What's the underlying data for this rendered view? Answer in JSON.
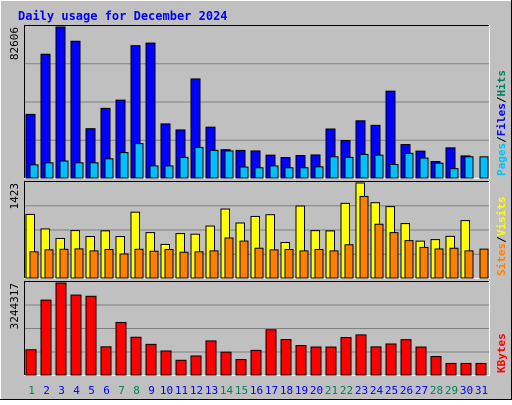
{
  "title": "Daily usage for December 2024",
  "colors": {
    "background": "#c0c0c0",
    "title": "#0000ff",
    "hits": "#00805c",
    "files": "#0000ff",
    "pages": "#00c0ff",
    "visits": "#ffff00",
    "sites": "#ff8000",
    "kbytes": "#ff0000",
    "weekend_day": "#00805c",
    "weekday": "#0000ff"
  },
  "chart_data": [
    {
      "type": "bar",
      "name": "hits-files-pages",
      "max_label": "82606",
      "ymax": 82606,
      "legend": [
        "Pages",
        "/",
        "Files",
        "/",
        "Hits"
      ],
      "categories": [
        "1",
        "2",
        "3",
        "4",
        "5",
        "6",
        "7",
        "8",
        "9",
        "10",
        "11",
        "12",
        "13",
        "14",
        "15",
        "16",
        "17",
        "18",
        "19",
        "20",
        "21",
        "22",
        "23",
        "24",
        "25",
        "26",
        "27",
        "28",
        "29",
        "30",
        "31"
      ],
      "series": [
        {
          "name": "Files",
          "values": [
            34800,
            67700,
            82600,
            74800,
            27000,
            38100,
            42600,
            72400,
            73800,
            29600,
            26300,
            54200,
            27800,
            15500,
            15100,
            14800,
            12500,
            11200,
            12300,
            12600,
            26800,
            20500,
            31300,
            28800,
            47500,
            18300,
            14700,
            9000,
            16500,
            12100,
            0
          ]
        },
        {
          "name": "Pages",
          "values": [
            7200,
            8300,
            9300,
            8300,
            8300,
            10500,
            13900,
            18800,
            6600,
            6600,
            11300,
            16700,
            15100,
            14800,
            6000,
            5600,
            6600,
            5600,
            5600,
            6100,
            11600,
            11300,
            12900,
            12500,
            7400,
            13500,
            10900,
            8100,
            5100,
            11600,
            11600
          ]
        }
      ]
    },
    {
      "type": "bar",
      "name": "visits-sites",
      "max_label": "1423",
      "ymax": 1423,
      "legend": [
        "Sites",
        "/",
        "Visits"
      ],
      "categories": [
        "1",
        "2",
        "3",
        "4",
        "5",
        "6",
        "7",
        "8",
        "9",
        "10",
        "11",
        "12",
        "13",
        "14",
        "15",
        "16",
        "17",
        "18",
        "19",
        "20",
        "21",
        "22",
        "23",
        "24",
        "25",
        "26",
        "27",
        "28",
        "29",
        "30",
        "31"
      ],
      "series": [
        {
          "name": "Visits",
          "values": [
            952,
            735,
            592,
            710,
            621,
            706,
            621,
            986,
            680,
            503,
            665,
            656,
            778,
            1033,
            824,
            922,
            948,
            532,
            1078,
            709,
            705,
            1118,
            1423,
            1128,
            1069,
            815,
            552,
            575,
            624,
            860,
            0
          ]
        },
        {
          "name": "Sites",
          "values": [
            392,
            422,
            430,
            436,
            406,
            427,
            360,
            430,
            401,
            427,
            386,
            392,
            406,
            599,
            553,
            446,
            422,
            427,
            406,
            427,
            406,
            498,
            1222,
            805,
            679,
            560,
            458,
            435,
            446,
            406,
            432
          ]
        }
      ]
    },
    {
      "type": "bar",
      "name": "kbytes",
      "max_label": "3244317",
      "ymax": 3244317,
      "legend": [
        "KBytes"
      ],
      "categories": [
        "1",
        "2",
        "3",
        "4",
        "5",
        "6",
        "7",
        "8",
        "9",
        "10",
        "11",
        "12",
        "13",
        "14",
        "15",
        "16",
        "17",
        "18",
        "19",
        "20",
        "21",
        "22",
        "23",
        "24",
        "25",
        "26",
        "27",
        "28",
        "29",
        "30",
        "31"
      ],
      "series": [
        {
          "name": "KBytes",
          "values": [
            891000,
            2641000,
            3244000,
            2819000,
            2776000,
            994000,
            1853000,
            1332000,
            1081000,
            847000,
            519000,
            671000,
            1202000,
            807000,
            544000,
            870000,
            1595000,
            1249000,
            1040000,
            987000,
            986000,
            1322000,
            1415000,
            992000,
            1094000,
            1246000,
            986000,
            651000,
            407000,
            407000,
            407000
          ]
        }
      ]
    }
  ],
  "days": [
    "1",
    "2",
    "3",
    "4",
    "5",
    "6",
    "7",
    "8",
    "9",
    "10",
    "11",
    "12",
    "13",
    "14",
    "15",
    "16",
    "17",
    "18",
    "19",
    "20",
    "21",
    "22",
    "23",
    "24",
    "25",
    "26",
    "27",
    "28",
    "29",
    "30",
    "31"
  ],
  "weekend_days": [
    "1",
    "7",
    "8",
    "14",
    "15",
    "21",
    "22",
    "28",
    "29"
  ]
}
